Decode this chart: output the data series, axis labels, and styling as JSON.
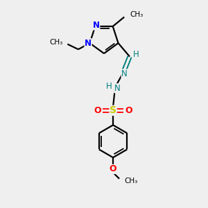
{
  "background_color": "#efefef",
  "bond_color": "#000000",
  "N_color": "#0000ff",
  "O_color": "#ff0000",
  "S_color": "#cccc00",
  "CH_color": "#008080",
  "C_color": "#000000",
  "figsize": [
    3.0,
    3.0
  ],
  "dpi": 100,
  "xlim": [
    0,
    10
  ],
  "ylim": [
    0,
    10
  ]
}
